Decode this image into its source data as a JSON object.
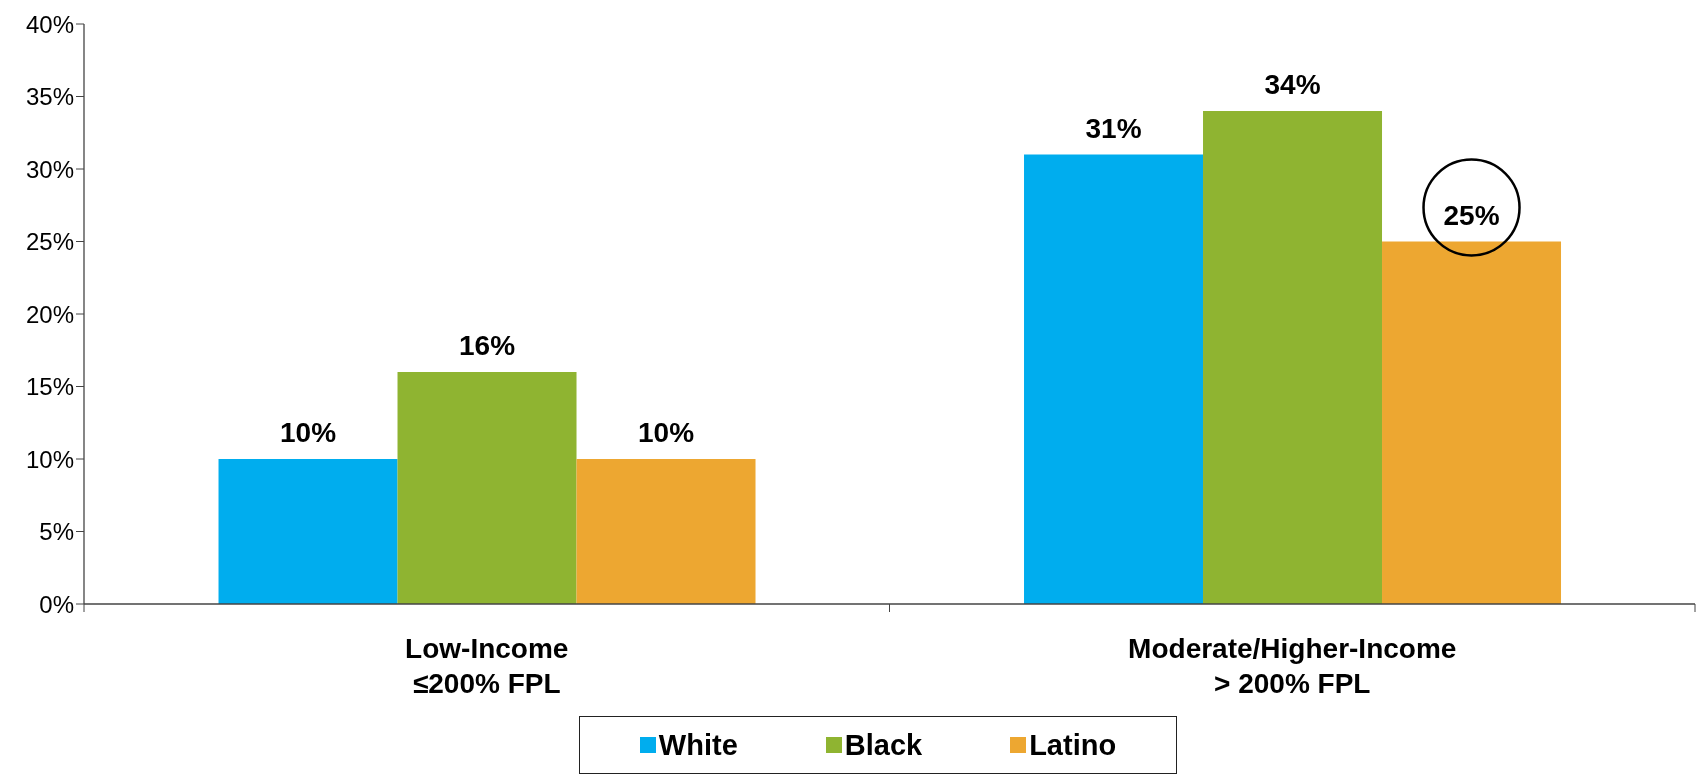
{
  "chart_data": {
    "type": "bar",
    "categories": [
      "Low-Income\n≤200% FPL",
      "Moderate/Higher-Income\n> 200% FPL"
    ],
    "series": [
      {
        "name": "White",
        "color": "#00adee",
        "values": [
          10,
          31
        ],
        "value_labels": [
          "10%",
          "31%"
        ]
      },
      {
        "name": "Black",
        "color": "#8fb431",
        "values": [
          16,
          34
        ],
        "value_labels": [
          "16%",
          "34%"
        ]
      },
      {
        "name": "Latino",
        "color": "#eda731",
        "values": [
          10,
          25
        ],
        "value_labels": [
          "10%",
          "25%"
        ]
      }
    ],
    "ylim": [
      0,
      40
    ],
    "yticks": [
      {
        "value": 0,
        "label": "0%"
      },
      {
        "value": 5,
        "label": "5%"
      },
      {
        "value": 10,
        "label": "10%"
      },
      {
        "value": 15,
        "label": "15%"
      },
      {
        "value": 20,
        "label": "20%"
      },
      {
        "value": 25,
        "label": "25%"
      },
      {
        "value": 30,
        "label": "30%"
      },
      {
        "value": 35,
        "label": "35%"
      },
      {
        "value": 40,
        "label": "40%"
      }
    ],
    "legend": "bottom"
  }
}
